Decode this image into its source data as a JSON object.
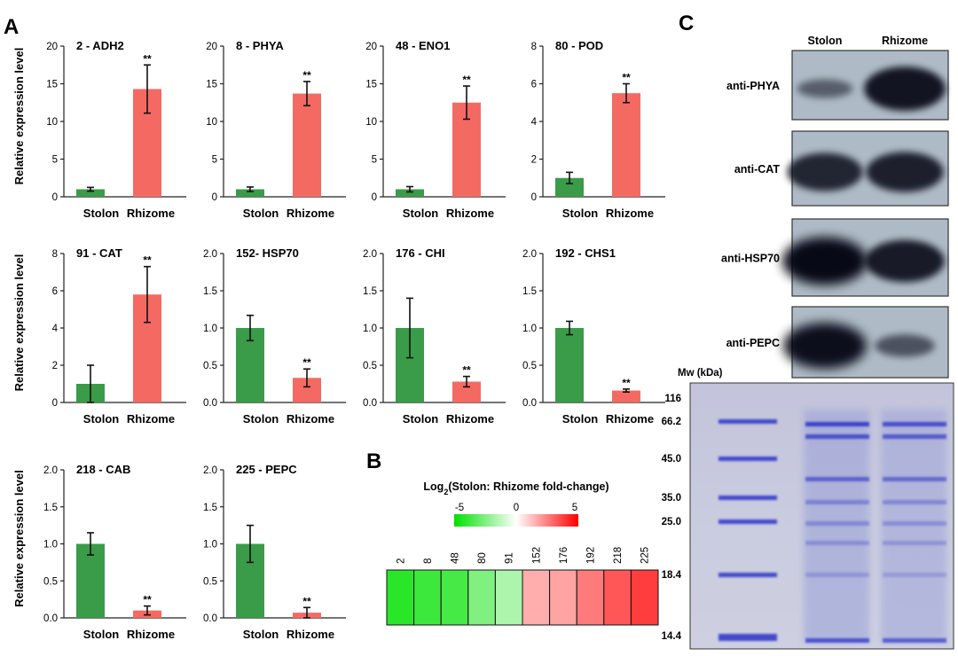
{
  "panels": {
    "a": "A",
    "b": "B",
    "c": "C"
  },
  "colors": {
    "stolon": "#3a9b49",
    "rhizome": "#f46a62"
  },
  "chart_data": [
    {
      "type": "bar",
      "title": "2 - ADH2",
      "categories": [
        "Stolon",
        "Rhizome"
      ],
      "values": [
        1.0,
        14.3
      ],
      "errors": [
        0.25,
        3.2
      ],
      "significance": [
        "",
        "**"
      ],
      "ylabel": "Relative expression level",
      "ylim": [
        0,
        20
      ],
      "yticks": [
        "0",
        "5",
        "10",
        "15",
        "20"
      ]
    },
    {
      "type": "bar",
      "title": "8 - PHYA",
      "categories": [
        "Stolon",
        "Rhizome"
      ],
      "values": [
        1.0,
        13.7
      ],
      "errors": [
        0.3,
        1.6
      ],
      "significance": [
        "",
        "**"
      ],
      "ylabel": "",
      "ylim": [
        0,
        20
      ],
      "yticks": [
        "0",
        "5",
        "10",
        "15",
        "20"
      ]
    },
    {
      "type": "bar",
      "title": "48 - ENO1",
      "categories": [
        "Stolon",
        "Rhizome"
      ],
      "values": [
        1.0,
        12.5
      ],
      "errors": [
        0.35,
        2.2
      ],
      "significance": [
        "",
        "**"
      ],
      "ylabel": "",
      "ylim": [
        0,
        20
      ],
      "yticks": [
        "0",
        "5",
        "10",
        "15",
        "20"
      ]
    },
    {
      "type": "bar",
      "title": "80 - POD",
      "categories": [
        "Stolon",
        "Rhizome"
      ],
      "values": [
        1.0,
        5.5
      ],
      "errors": [
        0.3,
        0.5
      ],
      "significance": [
        "",
        "**"
      ],
      "ylabel": "",
      "ylim": [
        0,
        8
      ],
      "yticks": [
        "0",
        "2",
        "4",
        "6",
        "8"
      ]
    },
    {
      "type": "bar",
      "title": "91 - CAT",
      "categories": [
        "Stolon",
        "Rhizome"
      ],
      "values": [
        1.0,
        5.8
      ],
      "errors": [
        1.0,
        1.5
      ],
      "significance": [
        "",
        "**"
      ],
      "ylabel": "Relative expression level",
      "ylim": [
        0,
        8
      ],
      "yticks": [
        "0",
        "2",
        "4",
        "6",
        "8"
      ]
    },
    {
      "type": "bar",
      "title": "152- HSP70",
      "categories": [
        "Stolon",
        "Rhizome"
      ],
      "values": [
        1.0,
        0.33
      ],
      "errors": [
        0.17,
        0.12
      ],
      "significance": [
        "",
        "**"
      ],
      "ylabel": "",
      "ylim": [
        0,
        2
      ],
      "yticks": [
        "0.0",
        "0.5",
        "1.0",
        "1.5",
        "2.0"
      ]
    },
    {
      "type": "bar",
      "title": "176 - CHI",
      "categories": [
        "Stolon",
        "Rhizome"
      ],
      "values": [
        1.0,
        0.28
      ],
      "errors": [
        0.4,
        0.07
      ],
      "significance": [
        "",
        "**"
      ],
      "ylabel": "",
      "ylim": [
        0,
        2
      ],
      "yticks": [
        "0.0",
        "0.5",
        "1.0",
        "1.5",
        "2.0"
      ]
    },
    {
      "type": "bar",
      "title": "192 - CHS1",
      "categories": [
        "Stolon",
        "Rhizome"
      ],
      "values": [
        1.0,
        0.16
      ],
      "errors": [
        0.09,
        0.02
      ],
      "significance": [
        "",
        "**"
      ],
      "ylabel": "",
      "ylim": [
        0,
        2
      ],
      "yticks": [
        "0.0",
        "0.5",
        "1.0",
        "1.5",
        "2.0"
      ]
    },
    {
      "type": "bar",
      "title": "218 - CAB",
      "categories": [
        "Stolon",
        "Rhizome"
      ],
      "values": [
        1.0,
        0.1
      ],
      "errors": [
        0.15,
        0.06
      ],
      "significance": [
        "",
        "**"
      ],
      "ylabel": "Relative expression level",
      "ylim": [
        0,
        2
      ],
      "yticks": [
        "0.0",
        "0.5",
        "1.0",
        "1.5",
        "2.0"
      ]
    },
    {
      "type": "bar",
      "title": "225 - PEPC",
      "categories": [
        "Stolon",
        "Rhizome"
      ],
      "values": [
        1.0,
        0.07
      ],
      "errors": [
        0.25,
        0.07
      ],
      "significance": [
        "",
        "**"
      ],
      "ylabel": "",
      "ylim": [
        0,
        2
      ],
      "yticks": [
        "0.0",
        "0.5",
        "1.0",
        "1.5",
        "2.0"
      ]
    },
    {
      "type": "heatmap",
      "title_main": "Log",
      "title_sub": "2",
      "title_rest": "(Stolon: Rhizome fold-change)",
      "scale": {
        "min": -5,
        "mid": 0,
        "max": 5,
        "labels": [
          "-5",
          "0",
          "5"
        ]
      },
      "categories": [
        "2",
        "8",
        "48",
        "80",
        "91",
        "152",
        "176",
        "192",
        "218",
        "225"
      ],
      "values": [
        -4.2,
        -3.8,
        -3.6,
        -2.5,
        -1.6,
        1.6,
        1.8,
        2.6,
        3.3,
        3.8
      ]
    }
  ],
  "blots": {
    "columns": [
      "Stolon",
      "Rhizome"
    ],
    "rows": [
      {
        "label": "anti-PHYA",
        "bands": [
          0.25,
          0.9
        ]
      },
      {
        "label": "anti-CAT",
        "bands": [
          0.75,
          0.8
        ]
      },
      {
        "label": "anti-HSP70",
        "bands": [
          1.0,
          0.85
        ]
      },
      {
        "label": "anti-PEPC",
        "bands": [
          0.95,
          0.35
        ]
      }
    ]
  },
  "gel": {
    "mw_title": "Mw (kDa)",
    "markers": [
      "116",
      "66.2",
      "45.0",
      "35.0",
      "25.0",
      "18.4",
      "14.4"
    ]
  }
}
